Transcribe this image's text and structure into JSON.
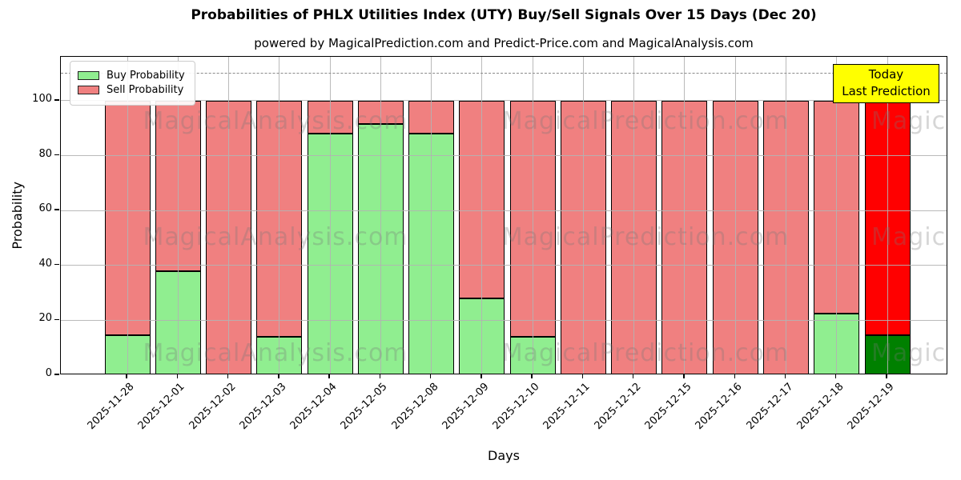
{
  "title": "Probabilities of PHLX Utilities Index (UTY) Buy/Sell Signals Over 15 Days (Dec 20)",
  "subtitle": "powered by MagicalPrediction.com and Predict-Price.com and MagicalAnalysis.com",
  "axes": {
    "xlabel": "Days",
    "ylabel": "Probability"
  },
  "legend": [
    {
      "label": "Buy Probability",
      "color": "#90EE90"
    },
    {
      "label": "Sell Probability",
      "color": "#F08080"
    }
  ],
  "annotation": {
    "lines": [
      "Today",
      "Last Prediction"
    ],
    "bg_color": "#FFFF00"
  },
  "watermarks": {
    "texts": [
      "MagicalAnalysis.com",
      "MagicalPrediction.com"
    ]
  },
  "chart_data": {
    "type": "bar",
    "stacked": true,
    "title": "Probabilities of PHLX Utilities Index (UTY) Buy/Sell Signals Over 15 Days (Dec 20)",
    "xlabel": "Days",
    "ylabel": "Probability",
    "categories": [
      "2025-11-28",
      "2025-12-01",
      "2025-12-02",
      "2025-12-03",
      "2025-12-04",
      "2025-12-05",
      "2025-12-08",
      "2025-12-09",
      "2025-12-10",
      "2025-12-11",
      "2025-12-12",
      "2025-12-15",
      "2025-12-16",
      "2025-12-17",
      "2025-12-18",
      "2025-12-19"
    ],
    "series": [
      {
        "name": "Buy Probability",
        "color": "#90EE90",
        "values": [
          14.5,
          38,
          0,
          14,
          88,
          91.5,
          88,
          28,
          14,
          0,
          0,
          0,
          0,
          0,
          22.5,
          14.5
        ]
      },
      {
        "name": "Sell Probability",
        "color": "#F08080",
        "values": [
          85.5,
          62,
          100,
          86,
          12,
          8.5,
          12,
          72,
          86,
          100,
          100,
          100,
          100,
          100,
          77.5,
          85.5
        ]
      }
    ],
    "today_index": 15,
    "today_colors": {
      "buy": "#008000",
      "sell": "#FF0000"
    },
    "ylim": [
      0,
      116
    ],
    "yticks": [
      0,
      20,
      40,
      60,
      80,
      100
    ],
    "dashed_line_y": 110,
    "grid": true,
    "legend_position": "upper left"
  }
}
